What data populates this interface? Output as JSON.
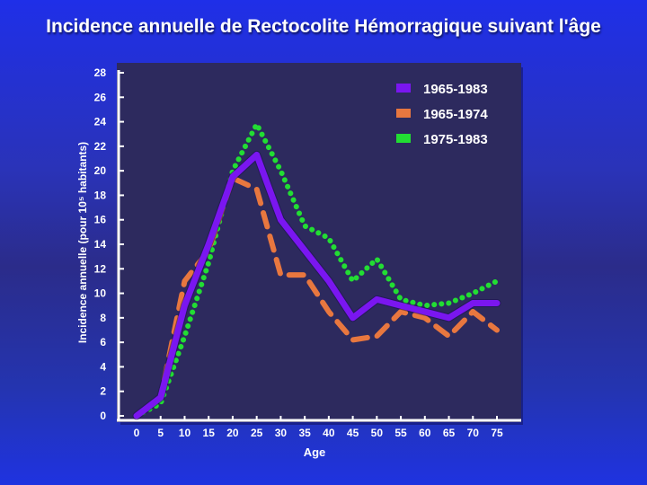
{
  "page_title": "Incidence annuelle de Rectocolite Hémorragique suivant l'âge",
  "colors": {
    "background": "#2030e0",
    "plot_area": "#2d2a5e"
  },
  "chart_data": {
    "type": "line",
    "title": "Incidence annuelle de Rectocolite Hémorragique suivant l'âge",
    "xlabel": "Age",
    "ylabel": "Incidence annuelle (pour 10⁵ habitants)",
    "x": [
      0,
      5,
      10,
      15,
      20,
      25,
      30,
      35,
      40,
      45,
      50,
      55,
      60,
      65,
      70,
      75
    ],
    "xlim": [
      0,
      77
    ],
    "ylim": [
      0,
      28
    ],
    "yticks": [
      0,
      2,
      4,
      6,
      8,
      10,
      12,
      14,
      16,
      18,
      20,
      22,
      24,
      26,
      28
    ],
    "grid": false,
    "legend_position": "top-right",
    "series": [
      {
        "name": "1965-1983",
        "color": "#7a16f0",
        "style": "solid",
        "values": [
          0,
          1.5,
          9,
          14,
          19.5,
          21.3,
          16,
          13.5,
          11,
          8,
          9.5,
          9,
          8.5,
          8,
          9.2,
          9.2
        ]
      },
      {
        "name": "1965-1974",
        "color": "#e8773f",
        "style": "dashed",
        "values": [
          0,
          1.5,
          11,
          13.5,
          19.4,
          18.5,
          11.5,
          11.5,
          8.5,
          6.2,
          6.5,
          8.5,
          8,
          6.5,
          8.5,
          7
        ]
      },
      {
        "name": "1975-1983",
        "color": "#22dd33",
        "style": "dotted",
        "values": [
          0,
          1,
          6.5,
          12.5,
          20,
          23.8,
          20,
          15.5,
          14.5,
          11,
          12.8,
          9.5,
          9,
          9.2,
          10,
          11
        ]
      }
    ]
  }
}
